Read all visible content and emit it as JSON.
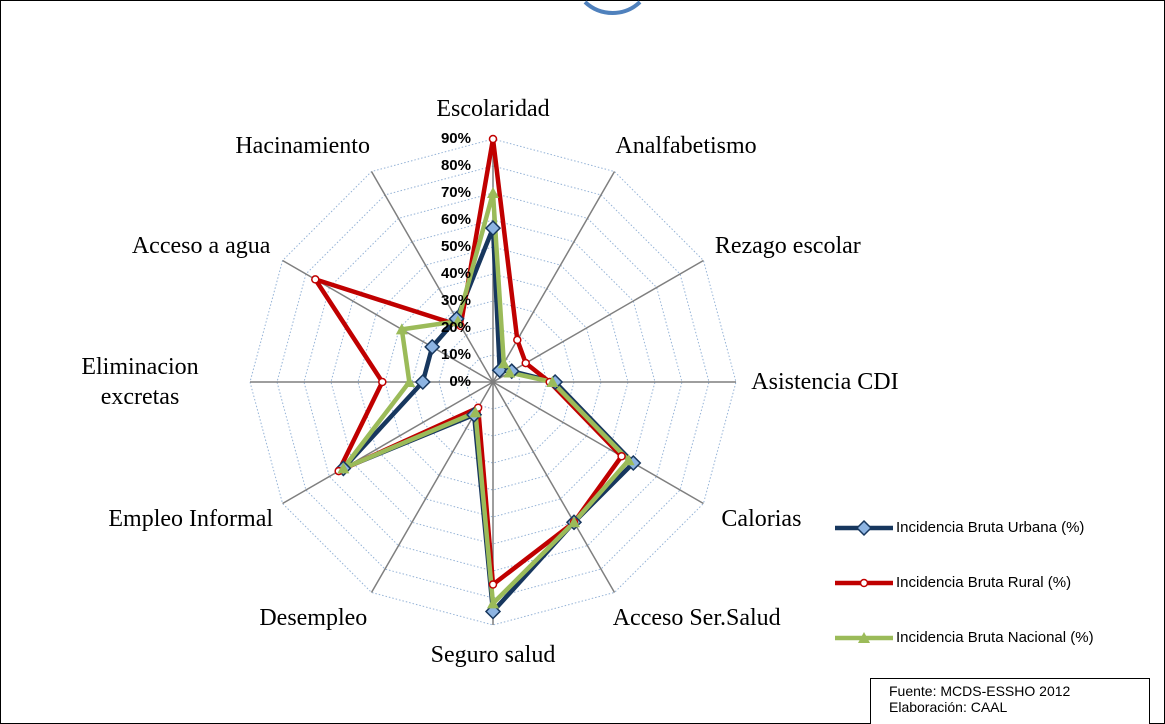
{
  "chart_data": {
    "type": "radar",
    "categories": [
      "Escolaridad",
      "Analfabetismo",
      "Rezago escolar",
      "Asistencia CDI",
      "Calorias",
      "Acceso Ser.Salud",
      "Seguro salud",
      "Desempleo",
      "Empleo Informal",
      "Eliminacion excretas",
      "Acceso a agua",
      "Hacinamiento"
    ],
    "series": [
      {
        "name": "Incidencia Bruta Urbana (%)",
        "color": "#17375e",
        "values": [
          57,
          5,
          8,
          23,
          60,
          60,
          85,
          14,
          64,
          26,
          26,
          27
        ]
      },
      {
        "name": "Incidencia Bruta Rural (%)",
        "color": "#c00000",
        "values": [
          90,
          18,
          14,
          21,
          55,
          60,
          75,
          11,
          66,
          41,
          76,
          24
        ]
      },
      {
        "name": "Incidencia Bruta Nacional (%)",
        "color": "#9bbb59",
        "values": [
          70,
          8,
          7,
          22,
          58,
          60,
          82,
          13,
          64,
          31,
          39,
          26
        ]
      }
    ],
    "ylim": [
      0,
      90
    ],
    "yticks": [
      {
        "value": 0,
        "label": "0%"
      },
      {
        "value": 10,
        "label": "10%"
      },
      {
        "value": 20,
        "label": "20%"
      },
      {
        "value": 30,
        "label": "30%"
      },
      {
        "value": 40,
        "label": "40%"
      },
      {
        "value": 50,
        "label": "50%"
      },
      {
        "value": 60,
        "label": "60%"
      },
      {
        "value": 70,
        "label": "70%"
      },
      {
        "value": 80,
        "label": "80%"
      },
      {
        "value": 90,
        "label": "90%"
      }
    ],
    "grid": true,
    "source": [
      "Fuente: MCDS-ESSHO 2012",
      "Elaboración: CAAL"
    ]
  }
}
